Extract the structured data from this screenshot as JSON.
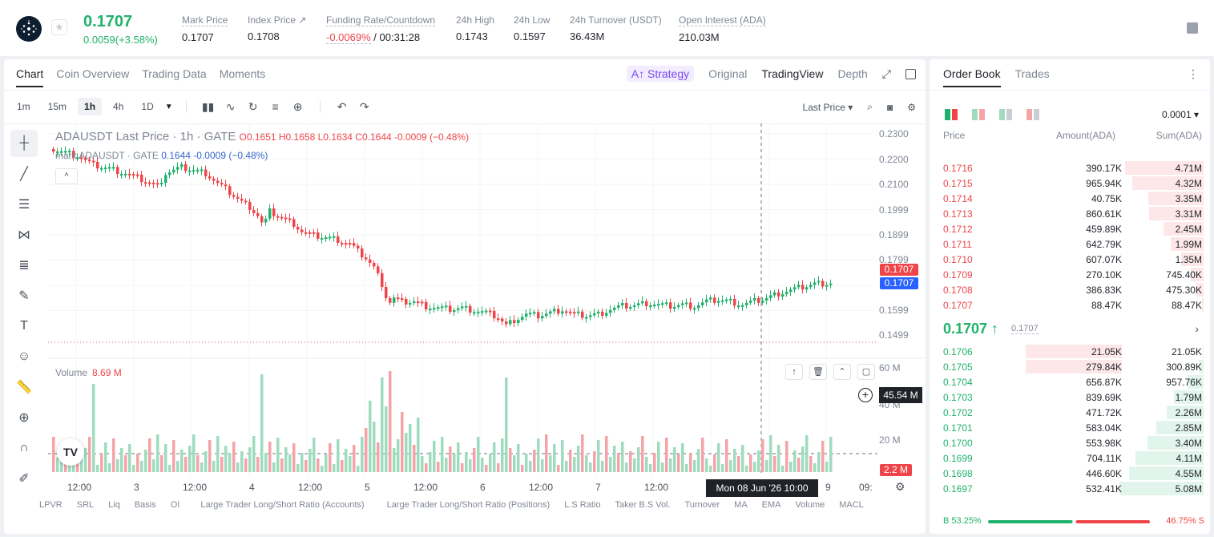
{
  "ticker": {
    "last_price": "0.1707",
    "change": "0.0059(+3.58%)",
    "stats": [
      {
        "label": "Mark Price",
        "value": "0.1707"
      },
      {
        "label": "Index Price ↗",
        "value": "0.1708"
      },
      {
        "label": "Funding Rate/Countdown",
        "value_neg": "-0.0069%",
        "value": " / 00:31:28"
      },
      {
        "label": "24h High",
        "value": "0.1743"
      },
      {
        "label": "24h Low",
        "value": "0.1597"
      },
      {
        "label": "24h Turnover (USDT)",
        "value": "36.43M"
      },
      {
        "label": "Open Interest (ADA)",
        "value": "210.03M"
      }
    ]
  },
  "chart_tabs": [
    "Chart",
    "Coin Overview",
    "Trading Data",
    "Moments"
  ],
  "view_tabs": {
    "strategy": "A↑ Strategy",
    "original": "Original",
    "tradingview": "TradingView",
    "depth": "Depth"
  },
  "intervals": [
    "1m",
    "15m",
    "1h",
    "4h",
    "1D"
  ],
  "price_type": "Last Price ▾",
  "legend": {
    "symbol": "ADAUSDT Last Price · 1h · GATE",
    "ohlc": "O0.1651 H0.1658 L0.1634 C0.1644 -0.0009 (−0.48%)",
    "mark_label": "mark  ADAUSDT · GATE",
    "mark_values": "0.1644 -0.0009 (−0.48%)",
    "volume_label": "Volume",
    "volume_value": "8.69 M"
  },
  "price_axis": [
    "0.2300",
    "0.2200",
    "0.2100",
    "0.1999",
    "0.1899",
    "0.1799",
    "0.1599",
    "0.1499"
  ],
  "price_tags": {
    "red": "0.1707",
    "blue": "0.1707"
  },
  "volume_axis": [
    "60 M",
    "40 M",
    "20 M"
  ],
  "volume_tags": {
    "cursor": "45.54 M",
    "current": "2.2 M"
  },
  "time_axis": [
    "12:00",
    "3",
    "12:00",
    "4",
    "12:00",
    "5",
    "12:00",
    "6",
    "12:00",
    "7",
    "12:00",
    "9",
    "09:"
  ],
  "crosshair_date": "Mon 08 Jun '26   10:00",
  "indicators": [
    "LPVR",
    "SRL",
    "Liq",
    "Basis",
    "OI",
    "Large Trader Long/Short Ratio (Accounts)",
    "Large Trader Long/Short Ratio (Positions)",
    "L.S Ratio",
    "Taker B.S Vol.",
    "Turnover",
    "MA",
    "EMA",
    "Volume",
    "MACL"
  ],
  "orderbook": {
    "tabs": [
      "Order Book",
      "Trades"
    ],
    "precision": "0.0001 ▾",
    "headers": {
      "price": "Price",
      "amount": "Amount(ADA)",
      "sum": "Sum(ADA)"
    },
    "asks": [
      {
        "price": "0.1716",
        "amount": "390.17K",
        "sum": "4.71M",
        "depth": 0.93
      },
      {
        "price": "0.1715",
        "amount": "965.94K",
        "sum": "4.32M",
        "depth": 0.85
      },
      {
        "price": "0.1714",
        "amount": "40.75K",
        "sum": "3.35M",
        "depth": 0.66
      },
      {
        "price": "0.1713",
        "amount": "860.61K",
        "sum": "3.31M",
        "depth": 0.65
      },
      {
        "price": "0.1712",
        "amount": "459.89K",
        "sum": "2.45M",
        "depth": 0.48
      },
      {
        "price": "0.1711",
        "amount": "642.79K",
        "sum": "1.99M",
        "depth": 0.39
      },
      {
        "price": "0.1710",
        "amount": "607.07K",
        "sum": "1.35M",
        "depth": 0.27
      },
      {
        "price": "0.1709",
        "amount": "270.10K",
        "sum": "745.40K",
        "depth": 0.15
      },
      {
        "price": "0.1708",
        "amount": "386.83K",
        "sum": "475.30K",
        "depth": 0.09
      },
      {
        "price": "0.1707",
        "amount": "88.47K",
        "sum": "88.47K",
        "depth": 0.02
      }
    ],
    "mid_price": "0.1707 ↑",
    "mid_mark": "0.1707",
    "bids": [
      {
        "price": "0.1706",
        "amount": "21.05K",
        "sum": "21.05K",
        "depth": 0.01
      },
      {
        "price": "0.1705",
        "amount": "279.84K",
        "sum": "300.89K",
        "depth": 0.06
      },
      {
        "price": "0.1704",
        "amount": "656.87K",
        "sum": "957.76K",
        "depth": 0.19
      },
      {
        "price": "0.1703",
        "amount": "839.69K",
        "sum": "1.79M",
        "depth": 0.35
      },
      {
        "price": "0.1702",
        "amount": "471.72K",
        "sum": "2.26M",
        "depth": 0.44
      },
      {
        "price": "0.1701",
        "amount": "583.04K",
        "sum": "2.85M",
        "depth": 0.56
      },
      {
        "price": "0.1700",
        "amount": "553.98K",
        "sum": "3.40M",
        "depth": 0.67
      },
      {
        "price": "0.1699",
        "amount": "704.11K",
        "sum": "4.11M",
        "depth": 0.81
      },
      {
        "price": "0.1698",
        "amount": "446.60K",
        "sum": "4.55M",
        "depth": 0.89
      },
      {
        "price": "0.1697",
        "amount": "532.41K",
        "sum": "5.08M",
        "depth": 1.0
      }
    ],
    "buy_ratio": "B 53.25%",
    "sell_ratio": "46.75% S",
    "buy_fraction": 0.5325
  },
  "colors": {
    "up": "#20b26c",
    "down": "#ef454a",
    "upbar": "#9fdcbf",
    "downbar": "#f5a3a7"
  }
}
